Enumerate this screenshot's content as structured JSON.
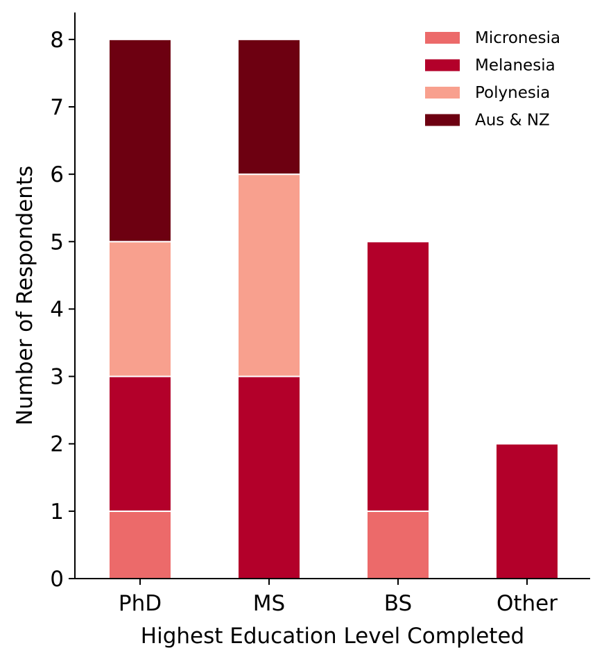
{
  "chart_data": {
    "type": "bar",
    "stacked": true,
    "categories": [
      "PhD",
      "MS",
      "BS",
      "Other"
    ],
    "series": [
      {
        "name": "Micronesia",
        "values": [
          1,
          0,
          1,
          0
        ],
        "color": "#ec6a6a"
      },
      {
        "name": "Melanesia",
        "values": [
          2,
          3,
          4,
          2
        ],
        "color": "#b3002a"
      },
      {
        "name": "Polynesia",
        "values": [
          2,
          3,
          0,
          0
        ],
        "color": "#f8a08e"
      },
      {
        "name": "Aus & NZ",
        "values": [
          3,
          2,
          0,
          0
        ],
        "color": "#6d0011"
      }
    ],
    "title": "",
    "xlabel": "Highest Education Level Completed",
    "ylabel": "Number of Respondents",
    "ylim": [
      0,
      8.4
    ],
    "yticks": [
      0,
      1,
      2,
      3,
      4,
      5,
      6,
      7,
      8
    ],
    "grid": false,
    "legend_position": "top-right"
  }
}
